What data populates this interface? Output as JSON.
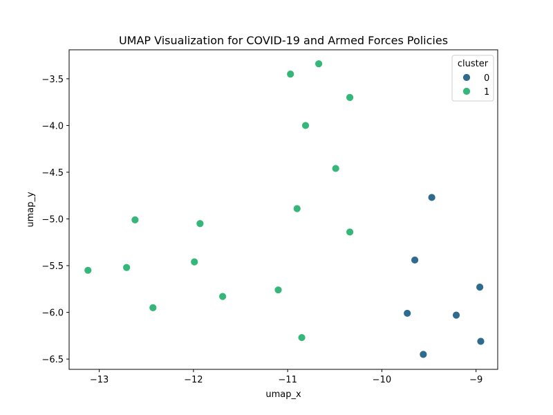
{
  "chart_data": {
    "type": "scatter",
    "title": "UMAP Visualization for COVID-19 and Armed Forces Policies",
    "xlabel": "umap_x",
    "ylabel": "umap_y",
    "xlim": [
      -13.32,
      -8.77
    ],
    "ylim": [
      -6.61,
      -3.19
    ],
    "xticks": [
      -13,
      -12,
      -11,
      -10,
      -9
    ],
    "xtick_labels": [
      "−13",
      "−12",
      "−11",
      "−10",
      "−9"
    ],
    "yticks": [
      -3.5,
      -4.0,
      -4.5,
      -5.0,
      -5.5,
      -6.0,
      -6.5
    ],
    "ytick_labels": [
      "−3.5",
      "−4.0",
      "−4.5",
      "−5.0",
      "−5.5",
      "−6.0",
      "−6.5"
    ],
    "grid": false,
    "legend": {
      "title": "cluster",
      "placement": "top-right",
      "entries": [
        {
          "label": "0",
          "color": "#2e6b8e"
        },
        {
          "label": "1",
          "color": "#35b779"
        }
      ]
    },
    "series": [
      {
        "name": "0",
        "color": "#2e6b8e",
        "points": [
          {
            "x": -9.47,
            "y": -4.77
          },
          {
            "x": -9.65,
            "y": -5.44
          },
          {
            "x": -8.96,
            "y": -5.73
          },
          {
            "x": -9.73,
            "y": -6.01
          },
          {
            "x": -9.21,
            "y": -6.03
          },
          {
            "x": -8.95,
            "y": -6.31
          },
          {
            "x": -9.56,
            "y": -6.45
          }
        ]
      },
      {
        "name": "1",
        "color": "#35b779",
        "points": [
          {
            "x": -10.67,
            "y": -3.34
          },
          {
            "x": -10.97,
            "y": -3.45
          },
          {
            "x": -10.34,
            "y": -3.7
          },
          {
            "x": -10.81,
            "y": -4.0
          },
          {
            "x": -10.49,
            "y": -4.46
          },
          {
            "x": -10.9,
            "y": -4.89
          },
          {
            "x": -10.34,
            "y": -5.14
          },
          {
            "x": -12.62,
            "y": -5.01
          },
          {
            "x": -11.93,
            "y": -5.05
          },
          {
            "x": -11.99,
            "y": -5.46
          },
          {
            "x": -12.71,
            "y": -5.52
          },
          {
            "x": -13.12,
            "y": -5.55
          },
          {
            "x": -11.1,
            "y": -5.76
          },
          {
            "x": -11.69,
            "y": -5.83
          },
          {
            "x": -12.43,
            "y": -5.95
          },
          {
            "x": -10.85,
            "y": -6.27
          }
        ]
      }
    ]
  }
}
